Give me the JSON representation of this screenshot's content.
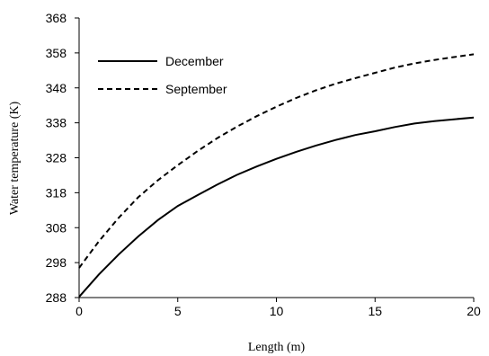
{
  "chart_data": {
    "type": "line",
    "title": "",
    "xlabel": "Length (m)",
    "ylabel": "Water temperature (K)",
    "xlim": [
      0,
      20
    ],
    "ylim": [
      288,
      368
    ],
    "xticks": [
      "0",
      "5",
      "10",
      "15",
      "20"
    ],
    "yticks": [
      "288",
      "298",
      "308",
      "318",
      "328",
      "338",
      "348",
      "358",
      "368"
    ],
    "grid": false,
    "legend_position": "top-left",
    "series": [
      {
        "name": "December",
        "style": "solid",
        "color": "#000000",
        "x": [
          0,
          1,
          2,
          3,
          4,
          5,
          6,
          7,
          8,
          9,
          10,
          11,
          12,
          13,
          14,
          15,
          16,
          17,
          18,
          19,
          20
        ],
        "y": [
          288.2,
          294.6,
          300.3,
          305.5,
          310.2,
          314.2,
          317.3,
          320.3,
          323.1,
          325.5,
          327.7,
          329.7,
          331.5,
          333.1,
          334.5,
          335.6,
          336.8,
          337.8,
          338.5,
          339,
          339.5
        ]
      },
      {
        "name": "September",
        "style": "dashed",
        "color": "#000000",
        "x": [
          0,
          1,
          2,
          3,
          4,
          5,
          6,
          7,
          8,
          9,
          10,
          11,
          12,
          13,
          14,
          15,
          16,
          17,
          18,
          19,
          20
        ],
        "y": [
          296.5,
          304.1,
          310.8,
          316.7,
          321.6,
          325.9,
          329.9,
          333.6,
          336.9,
          339.9,
          342.6,
          345.1,
          347.3,
          349.2,
          350.8,
          352.3,
          353.8,
          355,
          356,
          356.8,
          357.6
        ]
      }
    ]
  }
}
